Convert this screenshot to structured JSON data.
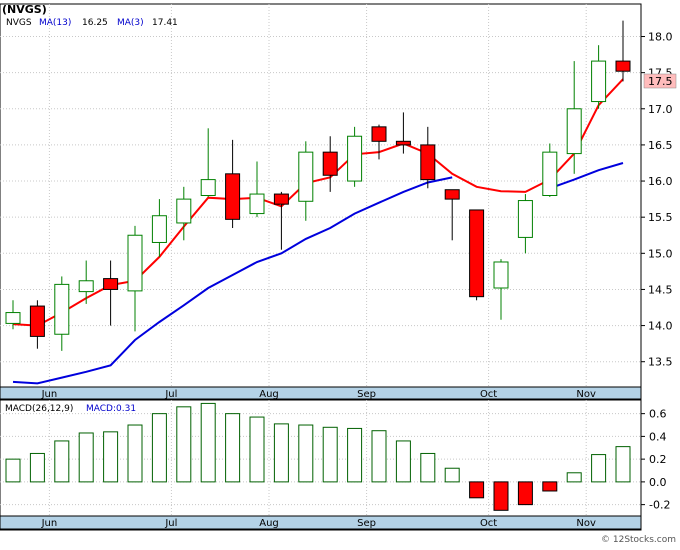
{
  "colors": {
    "up_candle": "#008000",
    "down_candle": "#ff0000",
    "ma_long": "#0000dd",
    "ma_short": "#ff0000",
    "macd_pos": "#006000",
    "macd_neg": "#ff0000",
    "axis_band": "#b4d2e6",
    "grid": "#c8c8c8",
    "last_price_bg": "#ffbcbc",
    "label_blue": "#0000cc"
  },
  "legend": {
    "ticker": "(NVGS)",
    "price_symbol": "NVGS",
    "ma13_label": "MA(13)",
    "ma13_value": "16.25",
    "ma3_label": "MA(3)",
    "ma3_value": "17.41",
    "macd_label": "MACD(26,12,9)",
    "macd_value_label": "MACD:0.31"
  },
  "last_price": "17.5",
  "watermark": "© 12Stocks.com",
  "chart_data": [
    {
      "type": "candlestick",
      "title": "(NVGS)",
      "ylim": [
        13.15,
        18.45
      ],
      "y_ticks": [
        "13.5",
        "14.0",
        "14.5",
        "15.0",
        "15.5",
        "16.0",
        "16.5",
        "17.0",
        "17.5",
        "18.0"
      ],
      "x_labels": [
        {
          "label": "Jun",
          "index": 1
        },
        {
          "label": "Jul",
          "index": 6
        },
        {
          "label": "Aug",
          "index": 10
        },
        {
          "label": "Sep",
          "index": 14
        },
        {
          "label": "Oct",
          "index": 19
        },
        {
          "label": "Nov",
          "index": 23
        }
      ],
      "candles": [
        {
          "open": 14.03,
          "high": 14.35,
          "low": 13.95,
          "close": 14.18
        },
        {
          "open": 14.27,
          "high": 14.35,
          "low": 13.68,
          "close": 13.85
        },
        {
          "open": 13.88,
          "high": 14.68,
          "low": 13.65,
          "close": 14.57
        },
        {
          "open": 14.47,
          "high": 14.9,
          "low": 14.3,
          "close": 14.62
        },
        {
          "open": 14.65,
          "high": 14.9,
          "low": 14.0,
          "close": 14.5
        },
        {
          "open": 14.48,
          "high": 15.38,
          "low": 13.92,
          "close": 15.25
        },
        {
          "open": 15.15,
          "high": 15.75,
          "low": 14.95,
          "close": 15.52
        },
        {
          "open": 15.42,
          "high": 15.92,
          "low": 15.18,
          "close": 15.75
        },
        {
          "open": 15.8,
          "high": 16.73,
          "low": 15.78,
          "close": 16.02
        },
        {
          "open": 16.1,
          "high": 16.57,
          "low": 15.35,
          "close": 15.47
        },
        {
          "open": 15.55,
          "high": 16.27,
          "low": 15.5,
          "close": 15.82
        },
        {
          "open": 15.82,
          "high": 15.85,
          "low": 15.05,
          "close": 15.68
        },
        {
          "open": 15.72,
          "high": 16.55,
          "low": 15.45,
          "close": 16.4
        },
        {
          "open": 16.4,
          "high": 16.62,
          "low": 15.85,
          "close": 16.08
        },
        {
          "open": 16.0,
          "high": 16.75,
          "low": 15.92,
          "close": 16.62
        },
        {
          "open": 16.75,
          "high": 16.78,
          "low": 16.3,
          "close": 16.55
        },
        {
          "open": 16.55,
          "high": 16.95,
          "low": 16.38,
          "close": 16.5
        },
        {
          "open": 16.5,
          "high": 16.75,
          "low": 15.9,
          "close": 16.02
        },
        {
          "open": 15.88,
          "high": 15.88,
          "low": 15.18,
          "close": 15.75
        },
        {
          "open": 15.6,
          "high": 15.6,
          "low": 14.35,
          "close": 14.4
        },
        {
          "open": 14.52,
          "high": 14.92,
          "low": 14.08,
          "close": 14.88
        },
        {
          "open": 15.22,
          "high": 15.82,
          "low": 15.0,
          "close": 15.73
        },
        {
          "open": 15.8,
          "high": 16.52,
          "low": 15.78,
          "close": 16.4
        },
        {
          "open": 16.38,
          "high": 17.66,
          "low": 16.1,
          "close": 17.0
        },
        {
          "open": 17.1,
          "high": 17.88,
          "low": 17.0,
          "close": 17.66
        },
        {
          "open": 17.66,
          "high": 18.22,
          "low": 17.38,
          "close": 17.52
        }
      ],
      "ma_short": [
        14.02,
        14.0,
        14.18,
        14.38,
        14.56,
        14.62,
        14.95,
        15.37,
        15.77,
        15.75,
        15.77,
        15.65,
        15.97,
        16.05,
        16.37,
        16.4,
        16.52,
        16.38,
        16.1,
        15.92,
        15.86,
        15.85,
        16.02,
        16.38,
        17.05,
        17.41
      ],
      "ma_long": [
        13.22,
        13.2,
        13.28,
        13.36,
        13.45,
        13.8,
        14.05,
        14.28,
        14.52,
        14.7,
        14.88,
        15.0,
        15.2,
        15.35,
        15.55,
        15.7,
        15.85,
        15.98,
        16.05,
        null,
        null,
        null,
        15.9,
        16.02,
        16.15,
        16.25
      ]
    },
    {
      "type": "bar",
      "title": "MACD(26,12,9)",
      "ylim": [
        -0.3,
        0.72
      ],
      "y_ticks": [
        "0.6",
        "0.4",
        "0.2",
        "0.0",
        "-0.2"
      ],
      "x_labels": [
        {
          "label": "Jun",
          "index": 1
        },
        {
          "label": "Jul",
          "index": 6
        },
        {
          "label": "Aug",
          "index": 10
        },
        {
          "label": "Sep",
          "index": 14
        },
        {
          "label": "Oct",
          "index": 19
        },
        {
          "label": "Nov",
          "index": 23
        }
      ],
      "values": [
        0.2,
        0.25,
        0.36,
        0.43,
        0.44,
        0.5,
        0.6,
        0.66,
        0.69,
        0.6,
        0.57,
        0.51,
        0.5,
        0.48,
        0.47,
        0.45,
        0.36,
        0.25,
        0.12,
        -0.14,
        -0.25,
        -0.2,
        -0.08,
        0.08,
        0.24,
        0.31
      ]
    }
  ]
}
